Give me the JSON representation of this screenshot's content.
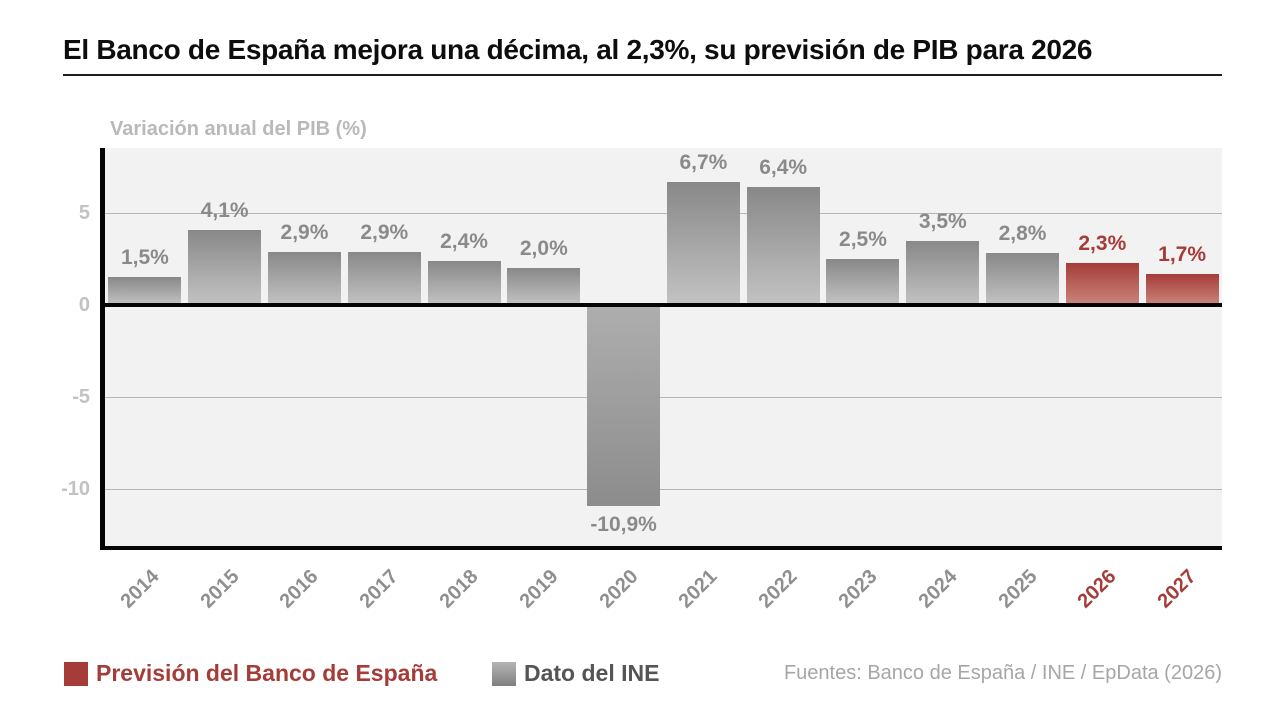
{
  "page": {
    "title": "El Banco de España mejora una décima, al 2,3%, su previsión de PIB para 2026",
    "source_note": "Fuentes: Banco de España / INE / EpData (2026)"
  },
  "legend": {
    "forecast": {
      "label": "Previsión del Banco de España",
      "color": "#a63c38"
    },
    "ine": {
      "label": "Dato del INE",
      "color_top": "#b5b5b5",
      "color_bottom": "#7f7f7f"
    }
  },
  "chart_data": {
    "type": "bar",
    "title": "Variación anual del PIB (%)",
    "xlabel": "",
    "ylabel": "Variación anual del PIB (%)",
    "categories": [
      "2014",
      "2015",
      "2016",
      "2017",
      "2018",
      "2019",
      "2020",
      "2021",
      "2022",
      "2023",
      "2024",
      "2025",
      "2026",
      "2027"
    ],
    "values": [
      1.5,
      4.1,
      2.9,
      2.9,
      2.4,
      2.0,
      -10.9,
      6.7,
      6.4,
      2.5,
      3.5,
      2.8,
      2.3,
      1.7
    ],
    "value_labels": [
      "1,5%",
      "4,1%",
      "2,9%",
      "2,9%",
      "2,4%",
      "2,0%",
      "-10,9%",
      "6,7%",
      "6,4%",
      "2,5%",
      "3,5%",
      "2,8%",
      "2,3%",
      "1,7%"
    ],
    "forecast": [
      false,
      false,
      false,
      false,
      false,
      false,
      false,
      false,
      false,
      false,
      false,
      false,
      true,
      true
    ],
    "y_ticks": [
      {
        "value": 5,
        "label": "5"
      },
      {
        "value": 0,
        "label": "0"
      },
      {
        "value": -5,
        "label": "-5"
      },
      {
        "value": -10,
        "label": "-10"
      }
    ],
    "ylim": [
      -13.1,
      8.6
    ],
    "grid": true,
    "legend_position": "bottom",
    "colors": {
      "bar_top": "#888888",
      "bar_bottom": "#c3c3c3",
      "bar_negative_top": "#aeaeae",
      "bar_negative_bottom": "#8c8c8c",
      "forecast_top": "#a63c38",
      "forecast_bottom": "#ca867d",
      "label_gray": "#8a8a8a",
      "label_red": "#a63c38",
      "axis": "#050505",
      "gridline": "#b5b5b5",
      "tick_label": "#c2c2c2",
      "plot_bg": "#f2f2f2"
    }
  }
}
